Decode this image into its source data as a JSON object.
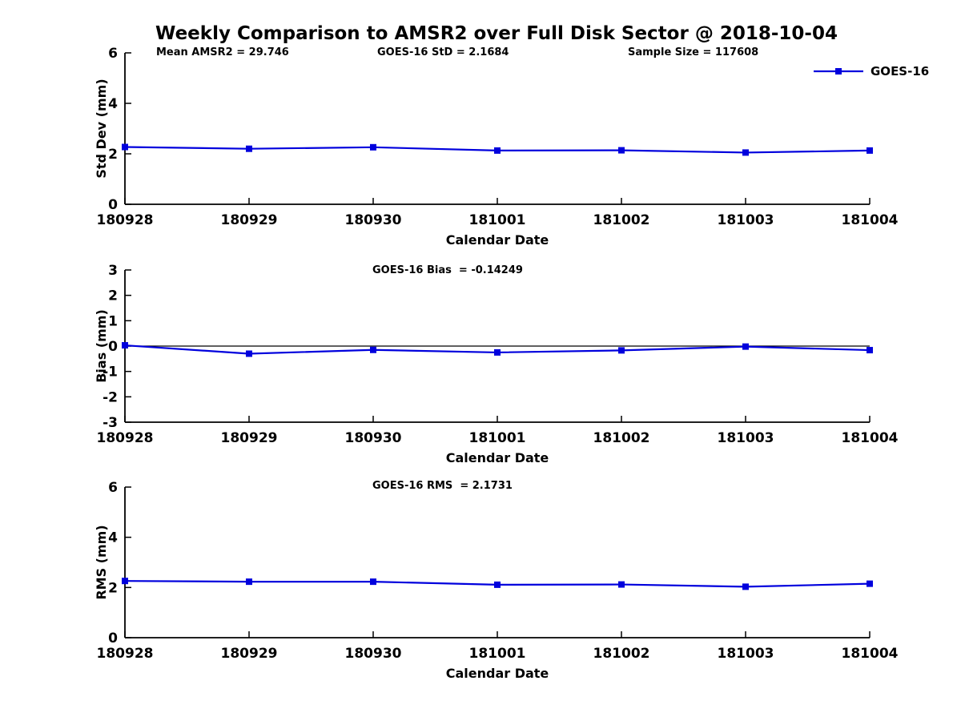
{
  "page_title": "Weekly Comparison to AMSR2 over Full Disk Sector @ 2018-10-04",
  "colors": {
    "series_line": "#0000dd",
    "axis": "#000000",
    "background": "#ffffff"
  },
  "legend": {
    "label": "GOES-16",
    "position": "top-right"
  },
  "header_annotations": {
    "mean_amsr2": "Mean AMSR2 = 29.746",
    "goes16_std": "GOES-16 StD = 2.1684",
    "sample_size": "Sample Size = 117608"
  },
  "chart_data": [
    {
      "type": "line",
      "name": "std-dev",
      "ylabel": "Std Dev (mm)",
      "xlabel": "Calendar Date",
      "ylim": [
        0,
        6
      ],
      "yticks": [
        0,
        2,
        4,
        6
      ],
      "grid": false,
      "legend_position": "top-right",
      "annotations": [
        "Mean AMSR2 = 29.746",
        "GOES-16 StD = 2.1684",
        "Sample Size = 117608"
      ],
      "categories": [
        "180928",
        "180929",
        "180930",
        "181001",
        "181002",
        "181003",
        "181004"
      ],
      "series": [
        {
          "name": "GOES-16",
          "marker": "square",
          "values": [
            2.27,
            2.2,
            2.26,
            2.13,
            2.14,
            2.05,
            2.13
          ]
        }
      ]
    },
    {
      "type": "line",
      "name": "bias",
      "title": "GOES-16 Bias  = -0.14249",
      "ylabel": "Bias (mm)",
      "xlabel": "Calendar Date",
      "ylim": [
        -3,
        3
      ],
      "yticks": [
        3,
        2,
        1,
        0,
        -1,
        -2,
        -3
      ],
      "zero_line": true,
      "grid": false,
      "categories": [
        "180928",
        "180929",
        "180930",
        "181001",
        "181002",
        "181003",
        "181004"
      ],
      "series": [
        {
          "name": "GOES-16",
          "marker": "square",
          "values": [
            0.03,
            -0.3,
            -0.15,
            -0.25,
            -0.17,
            -0.02,
            -0.16
          ]
        }
      ]
    },
    {
      "type": "line",
      "name": "rms",
      "title": "GOES-16 RMS  = 2.1731",
      "ylabel": "RMS (mm)",
      "xlabel": "Calendar Date",
      "ylim": [
        0,
        6
      ],
      "yticks": [
        0,
        2,
        4,
        6
      ],
      "grid": false,
      "categories": [
        "180928",
        "180929",
        "180930",
        "181001",
        "181002",
        "181003",
        "181004"
      ],
      "series": [
        {
          "name": "GOES-16",
          "marker": "square",
          "values": [
            2.26,
            2.23,
            2.23,
            2.11,
            2.12,
            2.03,
            2.15
          ]
        }
      ]
    }
  ]
}
